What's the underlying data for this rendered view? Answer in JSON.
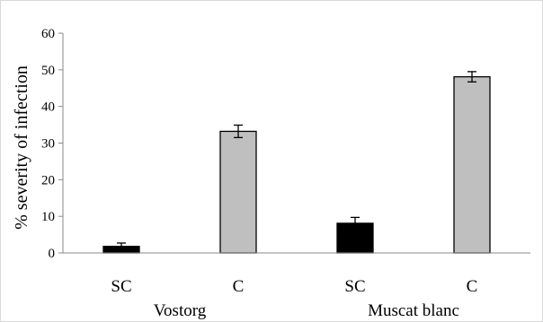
{
  "chart_data": {
    "type": "bar",
    "ylabel": "% severity of infection",
    "ylim": [
      0,
      60
    ],
    "yticks": [
      0,
      10,
      20,
      30,
      40,
      50,
      60
    ],
    "grid": false,
    "groups": [
      "Vostorg",
      "Muscat blanc"
    ],
    "categories": [
      "SC",
      "C",
      "SC",
      "C"
    ],
    "values": [
      1.8,
      33.2,
      8.1,
      48.1
    ],
    "errors": [
      0.9,
      1.7,
      1.6,
      1.4
    ],
    "bar_colors": [
      "#000000",
      "#bfbfbf",
      "#000000",
      "#bfbfbf"
    ]
  },
  "colors": {
    "axis": "#888888",
    "bar_stroke": "#000000",
    "frame": "#d9d9d9"
  }
}
